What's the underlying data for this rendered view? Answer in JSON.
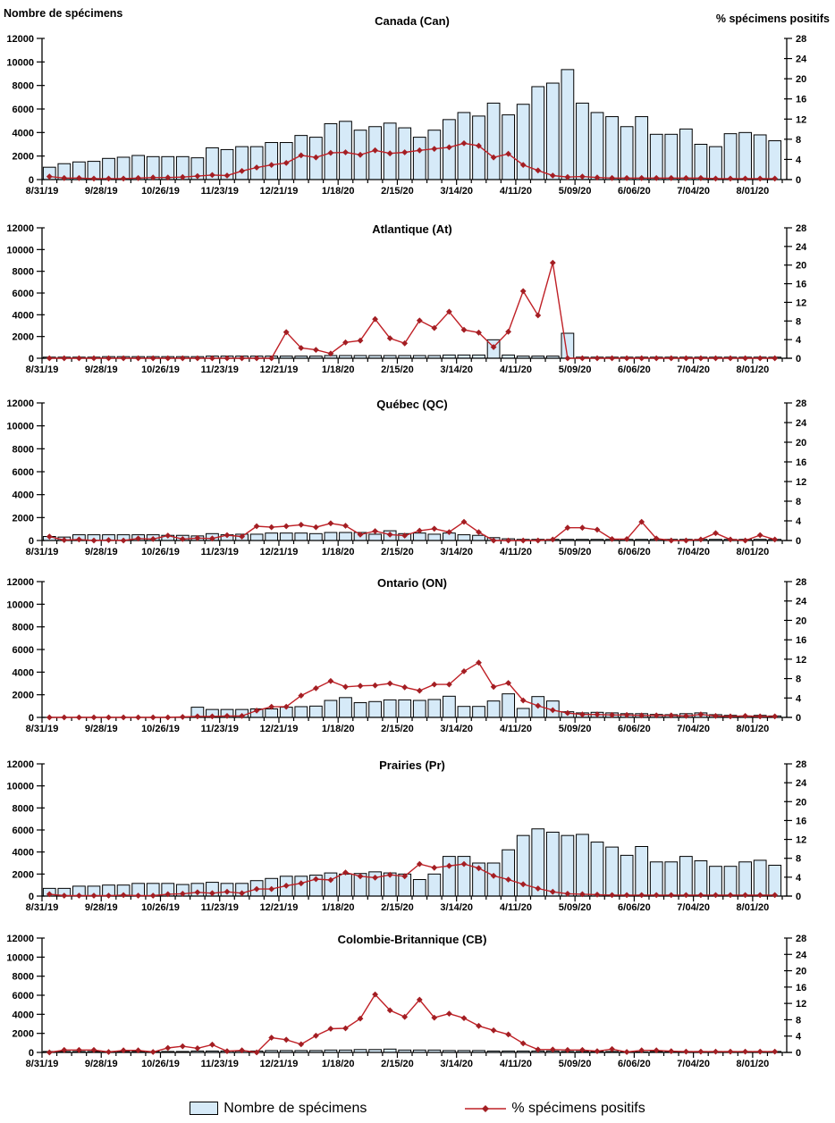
{
  "page": {
    "left_axis_title": "Nombre de spécimens",
    "right_axis_title": "% spécimens positifs"
  },
  "legend": {
    "bar_label": "Nombre de spécimens",
    "line_label": "% spécimens positifs"
  },
  "colors": {
    "bar_fill": "#d6eaf8",
    "bar_stroke": "#000000",
    "line": "#bf2026",
    "marker": "#a31e23",
    "axis": "#000000",
    "background": "#ffffff"
  },
  "axes": {
    "left_ylim": [
      0,
      12000
    ],
    "right_ylim": [
      0,
      28
    ],
    "left_ticks": [
      0,
      2000,
      4000,
      6000,
      8000,
      10000,
      12000
    ],
    "right_ticks": [
      0,
      4,
      8,
      12,
      16,
      20,
      24,
      28
    ],
    "x_tick_labels": [
      "8/31/19",
      "9/28/19",
      "10/26/19",
      "11/23/19",
      "12/21/19",
      "1/18/20",
      "2/15/20",
      "3/14/20",
      "4/11/20",
      "5/09/20",
      "6/06/20",
      "7/04/20",
      "8/01/20"
    ],
    "x_label_every_n_weeks": 4,
    "n_weeks": 50,
    "grid": false
  },
  "chart_data": [
    {
      "type": "bar+line",
      "title": "Canada (Can)",
      "series": [
        {
          "name": "Nombre de spécimens",
          "axis": "left",
          "values": [
            1050,
            1350,
            1500,
            1550,
            1800,
            1900,
            2050,
            1950,
            1950,
            1950,
            1850,
            2700,
            2550,
            2800,
            2800,
            3150,
            3150,
            3750,
            3600,
            4750,
            4950,
            4200,
            4500,
            4800,
            4400,
            3600,
            4200,
            5100,
            5700,
            5400,
            6500,
            5500,
            6400,
            7900,
            8200,
            9350,
            6500,
            5700,
            5350,
            4500,
            5350,
            3850,
            3850,
            4300,
            3000,
            2800,
            3900,
            4000,
            3800,
            3300
          ]
        },
        {
          "name": "% spécimens positifs",
          "axis": "right",
          "values": [
            0.6,
            0.3,
            0.3,
            0.2,
            0.2,
            0.2,
            0.3,
            0.4,
            0.4,
            0.5,
            0.7,
            0.9,
            0.8,
            1.7,
            2.4,
            2.9,
            3.3,
            4.8,
            4.4,
            5.3,
            5.4,
            4.9,
            5.8,
            5.2,
            5.4,
            5.8,
            6.1,
            6.4,
            7.2,
            6.7,
            4.4,
            5.1,
            2.9,
            1.8,
            0.8,
            0.5,
            0.6,
            0.4,
            0.3,
            0.3,
            0.3,
            0.3,
            0.3,
            0.3,
            0.3,
            0.2,
            0.2,
            0.2,
            0.2,
            0.2
          ]
        }
      ]
    },
    {
      "type": "bar+line",
      "title": "Atlantique (At)",
      "series": [
        {
          "name": "Nombre de spécimens",
          "axis": "left",
          "values": [
            100,
            100,
            100,
            100,
            150,
            150,
            150,
            150,
            150,
            150,
            150,
            200,
            200,
            200,
            200,
            200,
            200,
            200,
            200,
            250,
            250,
            250,
            250,
            250,
            250,
            250,
            250,
            300,
            300,
            300,
            1700,
            300,
            200,
            200,
            200,
            2300,
            100,
            100,
            100,
            100,
            100,
            100,
            100,
            100,
            100,
            100,
            100,
            100,
            100,
            100
          ]
        },
        {
          "name": "% spécimens positifs",
          "axis": "right",
          "values": [
            0,
            0,
            0,
            0,
            0,
            0,
            0,
            0,
            0,
            0,
            0,
            0,
            0,
            0,
            0,
            0,
            5.6,
            2.2,
            1.8,
            1.0,
            3.4,
            3.8,
            8.4,
            4.3,
            3.2,
            8.1,
            6.5,
            10.0,
            6.1,
            5.5,
            2.4,
            5.7,
            14.4,
            9.2,
            20.5,
            0,
            0,
            0,
            0,
            0,
            0,
            0,
            0,
            0,
            0,
            0,
            0,
            0,
            0,
            0
          ]
        }
      ]
    },
    {
      "type": "bar+line",
      "title": "Québec (QC)",
      "series": [
        {
          "name": "Nombre de spécimens",
          "axis": "left",
          "values": [
            350,
            300,
            500,
            500,
            500,
            500,
            500,
            500,
            450,
            450,
            400,
            600,
            500,
            550,
            550,
            650,
            650,
            650,
            600,
            700,
            700,
            700,
            550,
            850,
            600,
            650,
            550,
            650,
            500,
            450,
            250,
            150,
            100,
            100,
            100,
            100,
            100,
            100,
            100,
            100,
            100,
            100,
            100,
            100,
            100,
            100,
            100,
            100,
            100,
            100
          ]
        },
        {
          "name": "% spécimens positifs",
          "axis": "right",
          "values": [
            0.8,
            0.1,
            0.2,
            0,
            0.1,
            0,
            0.4,
            0.3,
            1.0,
            0.3,
            0.5,
            0.4,
            1.1,
            0.8,
            2.9,
            2.7,
            2.9,
            3.2,
            2.7,
            3.5,
            3.0,
            1.2,
            1.9,
            1.2,
            1.0,
            2.0,
            2.4,
            1.7,
            3.8,
            1.7,
            0,
            0,
            0,
            0,
            0.2,
            2.6,
            2.6,
            2.2,
            0.3,
            0.3,
            3.8,
            0.4,
            0,
            0,
            0.2,
            1.5,
            0.2,
            0,
            1.1,
            0.2
          ]
        }
      ]
    },
    {
      "type": "bar+line",
      "title": "Ontario (ON)",
      "series": [
        {
          "name": "Nombre de spécimens",
          "axis": "left",
          "values": [
            0,
            0,
            0,
            0,
            0,
            0,
            0,
            0,
            0,
            0,
            900,
            700,
            700,
            700,
            750,
            750,
            900,
            950,
            1000,
            1500,
            1750,
            1300,
            1400,
            1550,
            1550,
            1500,
            1580,
            1870,
            970,
            970,
            1450,
            2080,
            790,
            1840,
            1450,
            500,
            400,
            450,
            400,
            330,
            330,
            260,
            240,
            330,
            400,
            240,
            180,
            130,
            180,
            130
          ]
        },
        {
          "name": "% spécimens positifs",
          "axis": "right",
          "values": [
            0,
            0,
            0,
            0,
            0,
            0,
            0,
            0,
            0,
            0.1,
            0.2,
            0.2,
            0.3,
            0.3,
            1.4,
            2.2,
            2.2,
            4.5,
            6.0,
            7.5,
            6.3,
            6.5,
            6.6,
            7.0,
            6.2,
            5.5,
            6.8,
            6.8,
            9.5,
            11.3,
            6.3,
            7.1,
            3.5,
            2.4,
            1.5,
            0.9,
            0.6,
            0.6,
            0.5,
            0.5,
            0.4,
            0.4,
            0.4,
            0.3,
            0.6,
            0.3,
            0.2,
            0.3,
            0.2,
            0.2
          ]
        }
      ]
    },
    {
      "type": "bar+line",
      "title": "Prairies (Pr)",
      "series": [
        {
          "name": "Nombre de spécimens",
          "axis": "left",
          "values": [
            700,
            700,
            900,
            900,
            1000,
            1000,
            1150,
            1150,
            1150,
            1050,
            1150,
            1250,
            1150,
            1150,
            1400,
            1600,
            1800,
            1800,
            1900,
            2100,
            2000,
            2050,
            2200,
            2100,
            2000,
            1500,
            2000,
            3600,
            3600,
            3000,
            3000,
            4200,
            5500,
            6100,
            5800,
            5500,
            5600,
            4900,
            4450,
            3700,
            4500,
            3100,
            3100,
            3600,
            3200,
            2700,
            2700,
            3100,
            3250,
            2800
          ]
        },
        {
          "name": "% spécimens positifs",
          "axis": "right",
          "values": [
            0.4,
            0.1,
            0.1,
            0.1,
            0.1,
            0.2,
            0.1,
            0.1,
            0.4,
            0.5,
            0.8,
            0.6,
            0.9,
            0.6,
            1.5,
            1.5,
            2.2,
            2.7,
            3.6,
            3.4,
            5.0,
            4.2,
            3.9,
            4.5,
            4.2,
            6.8,
            6.0,
            6.4,
            6.8,
            5.9,
            4.3,
            3.5,
            2.5,
            1.6,
            0.9,
            0.5,
            0.4,
            0.3,
            0.2,
            0.2,
            0.2,
            0.2,
            0.2,
            0.2,
            0.2,
            0.2,
            0.2,
            0.2,
            0.2,
            0.2
          ]
        }
      ]
    },
    {
      "type": "bar+line",
      "title": "Colombie-Britannique (CB)",
      "series": [
        {
          "name": "Nombre de spécimens",
          "axis": "left",
          "values": [
            100,
            100,
            100,
            100,
            100,
            100,
            100,
            100,
            100,
            100,
            150,
            150,
            150,
            150,
            150,
            200,
            200,
            200,
            200,
            250,
            250,
            300,
            300,
            350,
            250,
            250,
            250,
            200,
            200,
            200,
            150,
            150,
            150,
            150,
            150,
            100,
            100,
            100,
            100,
            50,
            50,
            100,
            100,
            100,
            100,
            100,
            100,
            100,
            100,
            100
          ]
        },
        {
          "name": "% spécimens positifs",
          "axis": "right",
          "values": [
            0,
            0.6,
            0.6,
            0.6,
            0.1,
            0.5,
            0.5,
            0.1,
            1.1,
            1.5,
            1.0,
            1.9,
            0.3,
            0.5,
            0,
            3.6,
            3.1,
            2.0,
            4.1,
            5.8,
            5.9,
            8.3,
            14.2,
            10.3,
            8.7,
            12.9,
            8.5,
            9.5,
            8.4,
            6.5,
            5.4,
            4.4,
            2.2,
            0.7,
            0.7,
            0.6,
            0.6,
            0.3,
            0.8,
            0.1,
            0.5,
            0.5,
            0.3,
            0.2,
            0.2,
            0.2,
            0.2,
            0.2,
            0.2,
            0.2
          ]
        }
      ]
    }
  ]
}
